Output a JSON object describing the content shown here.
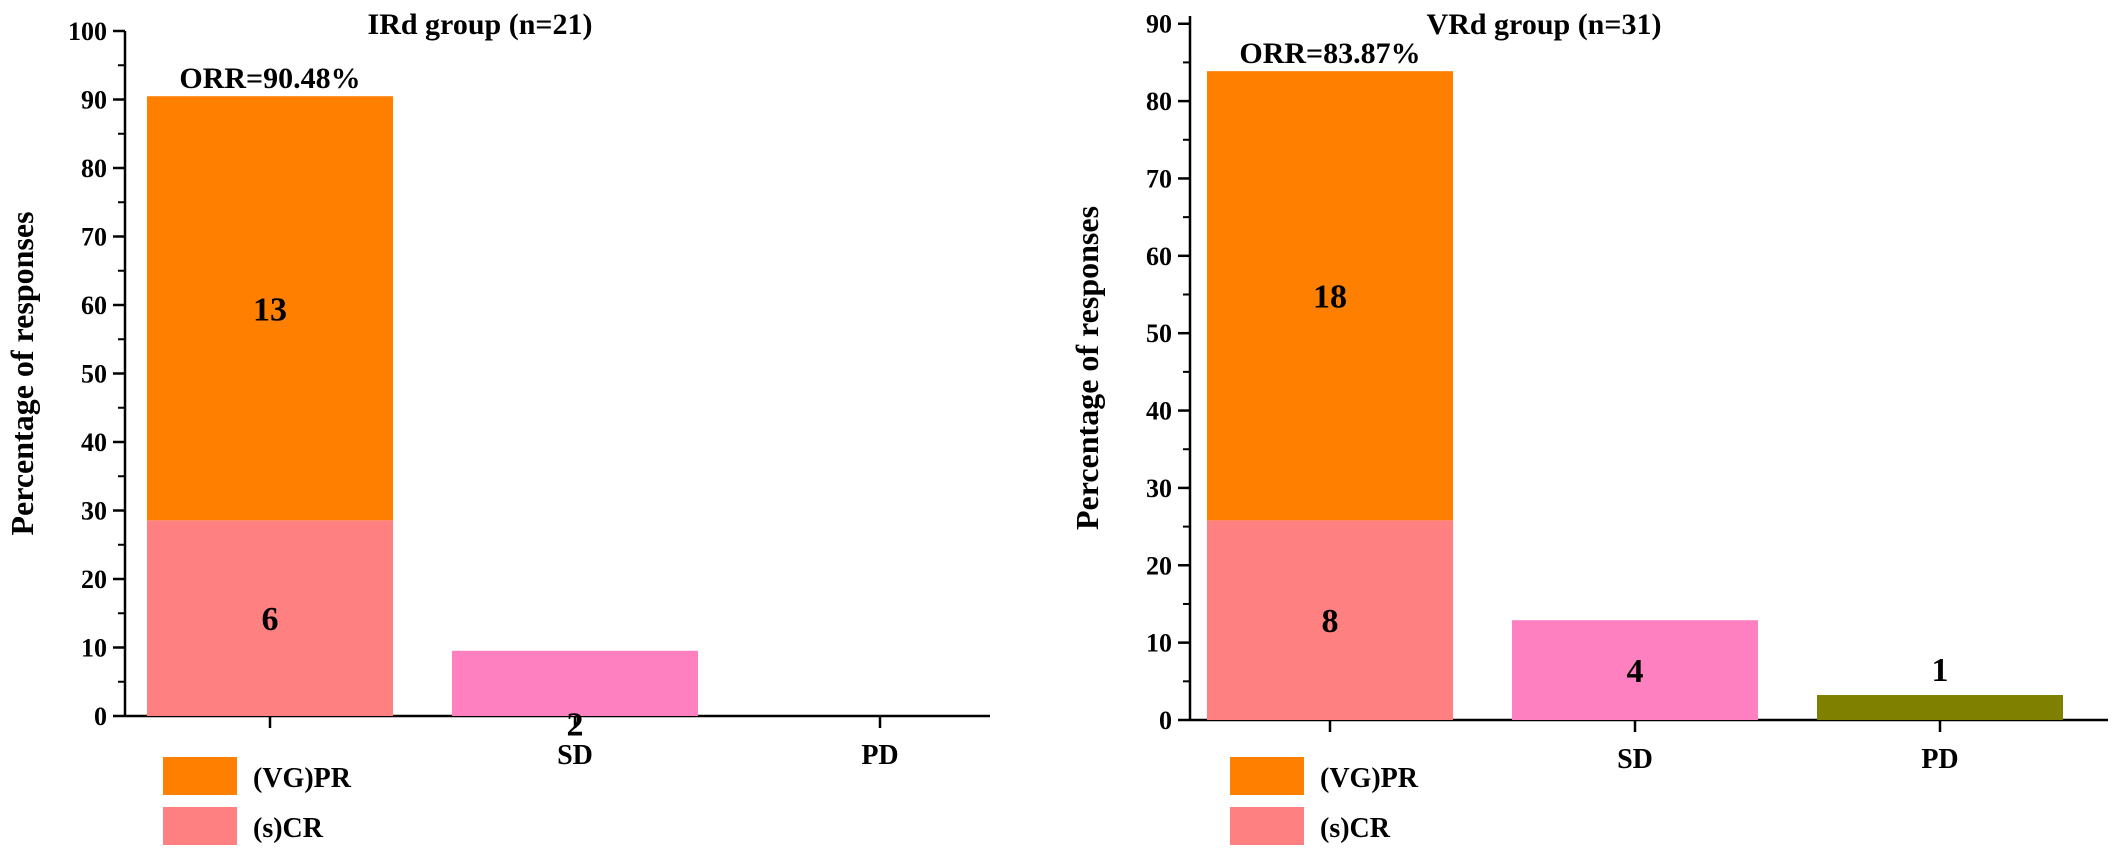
{
  "colors": {
    "vgpr": "#ff8000",
    "scr": "#ff8080",
    "sd": "#ff80c0",
    "pd": "#808000",
    "axis": "#000000"
  },
  "chart_data": [
    {
      "type": "bar",
      "stacked": true,
      "title": "IRd  group (n=21)",
      "ylabel": "Percentage of responses",
      "xlabel": "",
      "ylim": [
        0,
        100
      ],
      "ytick_step": 10,
      "ytick_labels": [
        "0",
        "10",
        "20",
        "30",
        "40",
        "50",
        "60",
        "70",
        "80",
        "90",
        "100"
      ],
      "categories": [
        "",
        "SD",
        "PD"
      ],
      "series": [
        {
          "name": "(s)CR",
          "values": [
            28.57,
            0,
            0
          ],
          "counts": [
            "6",
            "",
            ""
          ]
        },
        {
          "name": "(VG)PR",
          "values": [
            61.91,
            0,
            0
          ],
          "counts": [
            "13",
            "",
            ""
          ]
        },
        {
          "name": "",
          "values": [
            0,
            9.52,
            0
          ],
          "counts": [
            "",
            "2",
            ""
          ]
        },
        {
          "name": "",
          "values": [
            0,
            0,
            0
          ],
          "counts": [
            "",
            "",
            ""
          ]
        }
      ],
      "annotation": "ORR=90.48%",
      "legend": [
        {
          "label": "(VG)PR",
          "color": "#ff8000"
        },
        {
          "label": "(s)CR",
          "color": "#ff8080"
        }
      ],
      "legend_position": "bottom-left",
      "grid": false
    },
    {
      "type": "bar",
      "stacked": true,
      "title": "VRd  group (n=31)",
      "ylabel": "Percentage of responses",
      "xlabel": "",
      "ylim": [
        0,
        91
      ],
      "ytick_step": 10,
      "ytick_labels": [
        "0",
        "10",
        "20",
        "30",
        "40",
        "50",
        "60",
        "70",
        "80",
        "90"
      ],
      "categories": [
        "",
        "SD",
        "PD"
      ],
      "series": [
        {
          "name": "(s)CR",
          "values": [
            25.81,
            0,
            0
          ],
          "counts": [
            "8",
            "",
            ""
          ]
        },
        {
          "name": "(VG)PR",
          "values": [
            58.06,
            0,
            0
          ],
          "counts": [
            "18",
            "",
            ""
          ]
        },
        {
          "name": "",
          "values": [
            0,
            12.9,
            0
          ],
          "counts": [
            "",
            "4",
            ""
          ]
        },
        {
          "name": "",
          "values": [
            0,
            0,
            3.23
          ],
          "counts": [
            "",
            "",
            "1"
          ]
        }
      ],
      "annotation": "ORR=83.87%",
      "legend": [
        {
          "label": "(VG)PR",
          "color": "#ff8000"
        },
        {
          "label": "(s)CR",
          "color": "#ff8080"
        }
      ],
      "legend_position": "bottom-left",
      "grid": false
    }
  ]
}
